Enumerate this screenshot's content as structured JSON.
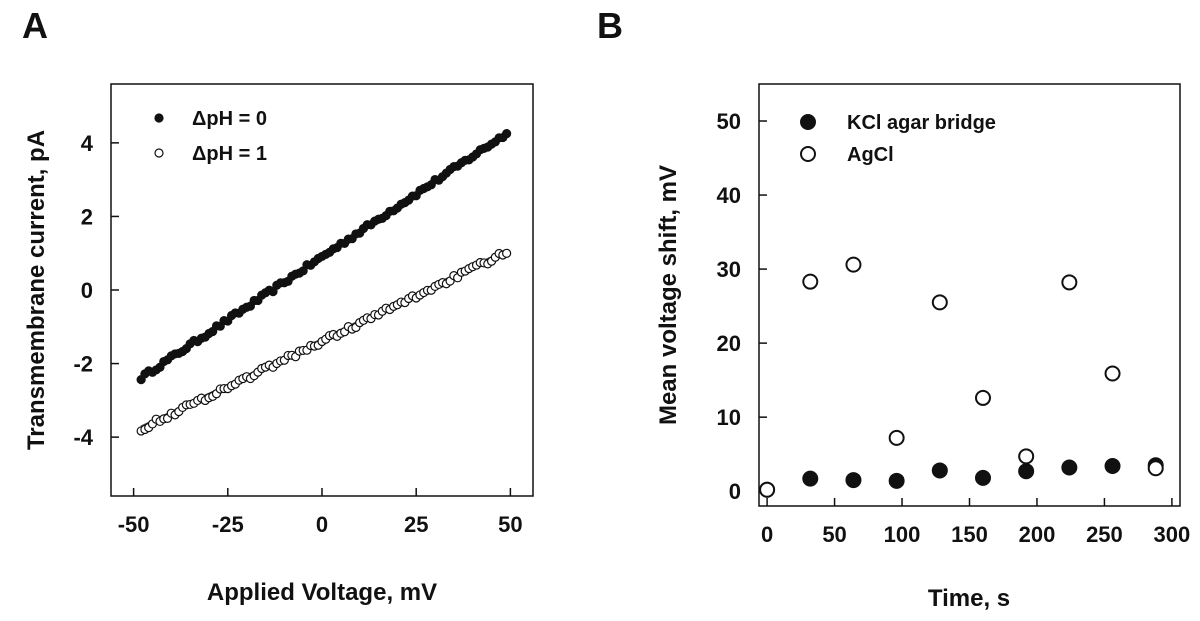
{
  "chart_data": [
    {
      "type": "scatter",
      "panel_label": "A",
      "xlabel": "Applied Voltage, mV",
      "ylabel": "Transmembrane current, pA",
      "xlim": [
        -56,
        56
      ],
      "ylim": [
        -5.6,
        5.6
      ],
      "xticks": [
        -50,
        -25,
        0,
        25,
        50
      ],
      "xtick_labels": [
        "-50",
        "-25",
        "0",
        "25",
        "50"
      ],
      "yticks": [
        -4,
        -2,
        0,
        2,
        4
      ],
      "ytick_labels": [
        "-4",
        "-2",
        "0",
        "2",
        "4"
      ],
      "legend_position": "top-left",
      "series": [
        {
          "name": "ΔpH = 0",
          "marker": "filled-circle",
          "color": "#111111",
          "x_range": [
            -48,
            49
          ],
          "n_points": 98,
          "fit": {
            "slope": 0.0685,
            "intercept": 0.9
          },
          "noise": 0.06
        },
        {
          "name": "ΔpH = 1",
          "marker": "open-circle",
          "color": "#111111",
          "x_range": [
            -48,
            49
          ],
          "n_points": 98,
          "fit": {
            "slope": 0.0495,
            "intercept": -1.4
          },
          "noise": 0.07
        }
      ],
      "fit_lines": [
        {
          "slope": 0.0685,
          "intercept": 0.9,
          "x_range": [
            -48,
            49
          ],
          "color": "#888888"
        },
        {
          "slope": 0.0495,
          "intercept": -1.35,
          "x_range": [
            -48,
            49
          ],
          "color": "#333333"
        }
      ]
    },
    {
      "type": "scatter",
      "panel_label": "B",
      "xlabel": "Time, s",
      "ylabel": "Mean voltage shift, mV",
      "xlim": [
        -6,
        306
      ],
      "ylim": [
        -2,
        55
      ],
      "xticks": [
        0,
        50,
        100,
        150,
        200,
        250,
        300
      ],
      "xtick_labels": [
        "0",
        "50",
        "100",
        "150",
        "200",
        "250",
        "300"
      ],
      "yticks": [
        0,
        10,
        20,
        30,
        40,
        50
      ],
      "ytick_labels": [
        "0",
        "10",
        "20",
        "30",
        "40",
        "50"
      ],
      "legend_position": "top-left",
      "series": [
        {
          "name": "KCl agar bridge",
          "marker": "filled-circle",
          "color": "#111111",
          "x": [
            0,
            32,
            64,
            96,
            128,
            160,
            192,
            224,
            256,
            288
          ],
          "y": [
            0.2,
            1.7,
            1.5,
            1.4,
            2.8,
            1.8,
            2.7,
            3.2,
            3.4,
            3.5
          ]
        },
        {
          "name": "AgCl",
          "marker": "open-circle",
          "color": "#111111",
          "x": [
            0,
            32,
            64,
            96,
            128,
            160,
            192,
            224,
            256,
            288
          ],
          "y": [
            0.2,
            28.3,
            30.6,
            7.2,
            25.5,
            12.6,
            4.7,
            28.2,
            15.9,
            3.1
          ]
        }
      ]
    }
  ]
}
